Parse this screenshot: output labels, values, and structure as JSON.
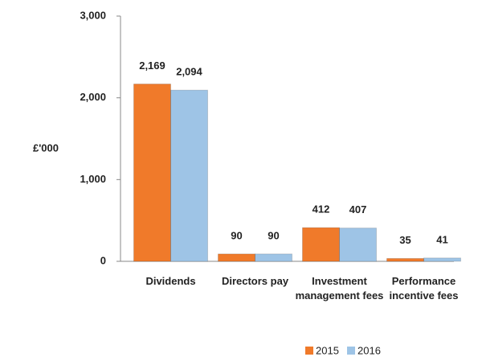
{
  "chart_data": {
    "type": "bar",
    "categories": [
      "Dividends",
      "Directors pay",
      "Investment management fees",
      "Performance incentive fees"
    ],
    "series": [
      {
        "name": "2015",
        "color": "#f07a2a",
        "values": [
          2169,
          90,
          412,
          35
        ],
        "value_labels": [
          "2,169",
          "90",
          "412",
          "35"
        ]
      },
      {
        "name": "2016",
        "color": "#9ec4e6",
        "values": [
          2094,
          90,
          407,
          41
        ],
        "value_labels": [
          "2,094",
          "90",
          "407",
          "41"
        ]
      }
    ],
    "y_label": "£'000",
    "ylim": [
      0,
      3000
    ],
    "yticks": [
      0,
      {
        "value": 1000,
        "label": "1,000"
      },
      {
        "value": 2000,
        "label": "2,000"
      },
      {
        "value": 3000,
        "label": "3,000"
      }
    ],
    "legend": "bottom"
  }
}
